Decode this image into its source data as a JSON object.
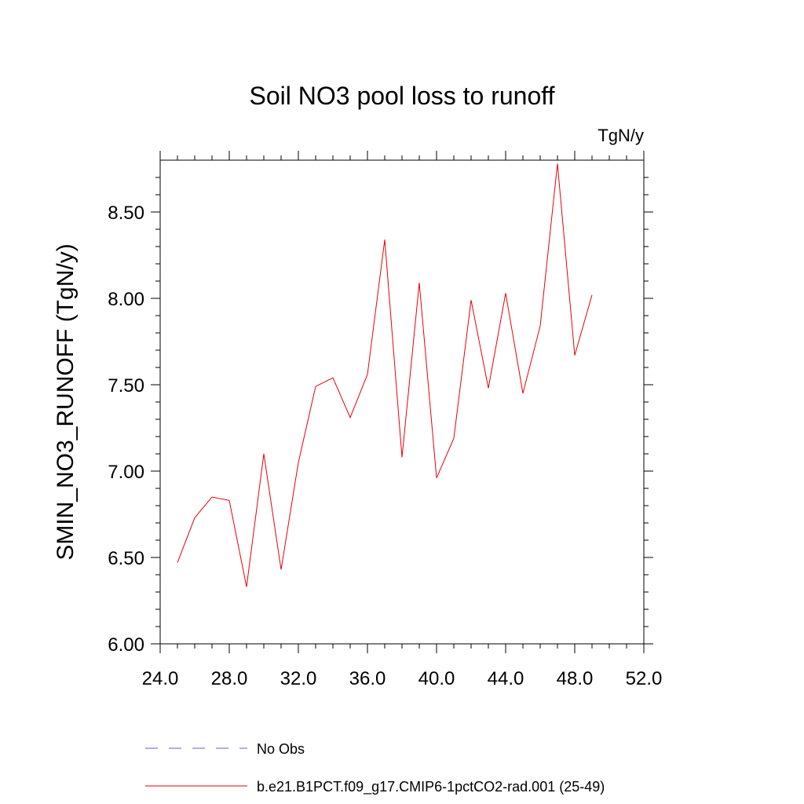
{
  "chart_data": {
    "type": "line",
    "title": "Soil NO3 pool loss to runoff",
    "units_label": "TgN/y",
    "ylabel": "SMIN_NO3_RUNOFF  (TgN/y)",
    "xlabel": "",
    "xlim": [
      24,
      52
    ],
    "ylim": [
      6.0,
      8.8
    ],
    "x_ticks": [
      "24.0",
      "28.0",
      "32.0",
      "36.0",
      "40.0",
      "44.0",
      "48.0",
      "52.0"
    ],
    "y_ticks": [
      "6.00",
      "6.50",
      "7.00",
      "7.50",
      "8.00",
      "8.50"
    ],
    "grid": false,
    "legend_position": "bottom",
    "series": [
      {
        "name": "b.e21.B1PCT.f09_g17.CMIP6-1pctCO2-rad.001 (25-49)",
        "color": "#e8000b",
        "line_style": "solid",
        "x": [
          25,
          26,
          27,
          28,
          29,
          30,
          31,
          32,
          33,
          34,
          35,
          36,
          37,
          38,
          39,
          40,
          41,
          42,
          43,
          44,
          45,
          46,
          47,
          48,
          49
        ],
        "y": [
          6.47,
          6.73,
          6.85,
          6.83,
          6.33,
          7.1,
          6.43,
          7.05,
          7.49,
          7.54,
          7.31,
          7.56,
          8.34,
          7.08,
          8.09,
          6.96,
          7.19,
          7.99,
          7.48,
          8.03,
          7.45,
          7.84,
          8.78,
          7.67,
          8.02
        ]
      }
    ],
    "legend": [
      {
        "label": "No Obs",
        "color": "#6a5acd",
        "line_style": "dashed"
      },
      {
        "label": "b.e21.B1PCT.f09_g17.CMIP6-1pctCO2-rad.001 (25-49)",
        "color": "#e8000b",
        "line_style": "solid"
      }
    ]
  }
}
